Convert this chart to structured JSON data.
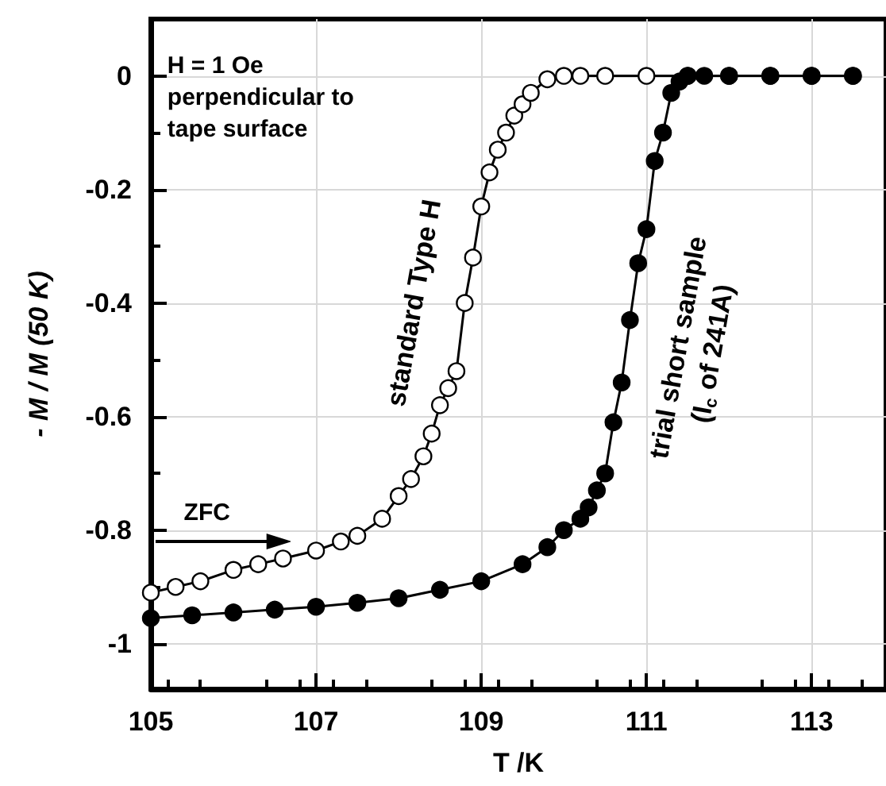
{
  "chart_data": {
    "type": "line",
    "xlabel": "T /K",
    "ylabel": "- M / M (50 K)",
    "xlim": [
      105,
      113.9
    ],
    "ylim": [
      -1.08,
      0.1
    ],
    "xticks": [
      105,
      107,
      109,
      111,
      113
    ],
    "yticks": [
      0,
      -0.2,
      -0.4,
      -0.6,
      -0.8,
      -1
    ],
    "grid": true,
    "legend": false,
    "marker": "circle",
    "series": [
      {
        "name": "standard Type H",
        "color": "#000000",
        "x": [
          105,
          105.3,
          105.6,
          106,
          106.3,
          106.6,
          107,
          107.3,
          107.5,
          107.8,
          108,
          108.15,
          108.3,
          108.4,
          108.5,
          108.6,
          108.7,
          108.8,
          108.9,
          109,
          109.1,
          109.2,
          109.3,
          109.4,
          109.5,
          109.6,
          109.8,
          110,
          110.2,
          110.5,
          111,
          111.5,
          112,
          112.5,
          113,
          113.5
        ],
        "values": [
          -0.91,
          -0.9,
          -0.89,
          -0.87,
          -0.86,
          -0.85,
          -0.836,
          -0.82,
          -0.81,
          -0.78,
          -0.74,
          -0.71,
          -0.67,
          -0.63,
          -0.58,
          -0.55,
          -0.52,
          -0.4,
          -0.32,
          -0.23,
          -0.17,
          -0.13,
          -0.1,
          -0.07,
          -0.05,
          -0.03,
          -0.006,
          0,
          0,
          0,
          0,
          0,
          0,
          0,
          0,
          0
        ]
      },
      {
        "name": "trial short sample\n(I$_{c}$ of 241A)",
        "color": "#000000",
        "x": [
          105,
          105.5,
          106,
          106.5,
          107,
          107.5,
          108,
          108.5,
          109,
          109.5,
          109.8,
          110,
          110.2,
          110.3,
          110.4,
          110.5,
          110.6,
          110.7,
          110.8,
          110.9,
          111,
          111.1,
          111.2,
          111.3,
          111.4,
          111.5,
          111.7,
          112,
          112.5,
          113,
          113.5
        ],
        "values": [
          -0.955,
          -0.95,
          -0.945,
          -0.94,
          -0.935,
          -0.928,
          -0.92,
          -0.905,
          -0.89,
          -0.86,
          -0.83,
          -0.8,
          -0.78,
          -0.76,
          -0.73,
          -0.7,
          -0.61,
          -0.54,
          -0.43,
          -0.33,
          -0.27,
          -0.15,
          -0.1,
          -0.03,
          -0.01,
          0,
          0,
          0,
          0,
          0,
          0
        ]
      }
    ],
    "annotations": [
      "H = 1 Oe\nperpendicular to\ntape surface",
      "ZFC"
    ]
  }
}
